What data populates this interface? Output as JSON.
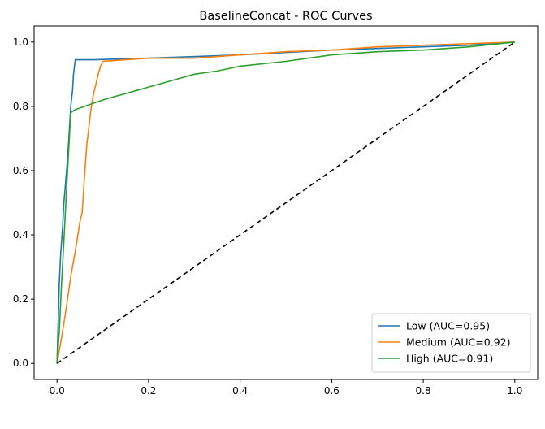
{
  "chart_data": {
    "type": "line",
    "title": "BaselineConcat - ROC Curves",
    "xlabel": "",
    "ylabel": "",
    "xlim": [
      -0.05,
      1.05
    ],
    "ylim": [
      -0.05,
      1.05
    ],
    "xticks": [
      0.0,
      0.2,
      0.4,
      0.6,
      0.8,
      1.0
    ],
    "xtick_labels": [
      "0.0",
      "0.2",
      "0.4",
      "0.6",
      "0.8",
      "1.0"
    ],
    "yticks": [
      0.0,
      0.2,
      0.4,
      0.6,
      0.8,
      1.0
    ],
    "ytick_labels": [
      "0.0",
      "0.2",
      "0.4",
      "0.6",
      "0.8",
      "1.0"
    ],
    "grid": false,
    "legend_position": "lower-right",
    "series": [
      {
        "name": "Low (AUC=0.95)",
        "color": "#1f77b4",
        "style": "solid",
        "x": [
          0.0,
          0.002,
          0.005,
          0.008,
          0.012,
          0.015,
          0.018,
          0.022,
          0.025,
          0.028,
          0.03,
          0.034,
          0.036,
          0.04,
          0.08,
          0.2,
          0.4,
          0.6,
          0.7,
          0.8,
          0.9,
          1.0
        ],
        "y": [
          0.0,
          0.1,
          0.25,
          0.34,
          0.42,
          0.5,
          0.55,
          0.62,
          0.68,
          0.75,
          0.8,
          0.85,
          0.9,
          0.945,
          0.945,
          0.95,
          0.96,
          0.975,
          0.98,
          0.985,
          0.99,
          1.0
        ]
      },
      {
        "name": "Medium (AUC=0.92)",
        "color": "#ff7f0e",
        "style": "solid",
        "x": [
          0.0,
          0.01,
          0.02,
          0.03,
          0.04,
          0.05,
          0.055,
          0.06,
          0.065,
          0.07,
          0.075,
          0.08,
          0.085,
          0.09,
          0.095,
          0.1,
          0.15,
          0.2,
          0.3,
          0.4,
          0.5,
          0.6,
          0.7,
          0.8,
          0.9,
          1.0
        ],
        "y": [
          0.0,
          0.08,
          0.17,
          0.27,
          0.35,
          0.44,
          0.47,
          0.58,
          0.68,
          0.74,
          0.8,
          0.84,
          0.87,
          0.9,
          0.925,
          0.94,
          0.945,
          0.95,
          0.95,
          0.96,
          0.97,
          0.975,
          0.985,
          0.99,
          0.995,
          1.0
        ]
      },
      {
        "name": "High (AUC=0.91)",
        "color": "#2ca02c",
        "style": "solid",
        "x": [
          0.0,
          0.005,
          0.01,
          0.015,
          0.02,
          0.025,
          0.03,
          0.04,
          0.06,
          0.1,
          0.15,
          0.2,
          0.25,
          0.3,
          0.35,
          0.4,
          0.5,
          0.6,
          0.7,
          0.8,
          0.9,
          1.0
        ],
        "y": [
          0.0,
          0.1,
          0.25,
          0.38,
          0.52,
          0.65,
          0.78,
          0.79,
          0.8,
          0.82,
          0.84,
          0.86,
          0.88,
          0.9,
          0.91,
          0.925,
          0.94,
          0.96,
          0.97,
          0.975,
          0.985,
          1.0
        ]
      },
      {
        "name": "",
        "color": "#000000",
        "style": "dashed",
        "x": [
          0.0,
          1.0
        ],
        "y": [
          0.0,
          1.0
        ]
      }
    ]
  }
}
